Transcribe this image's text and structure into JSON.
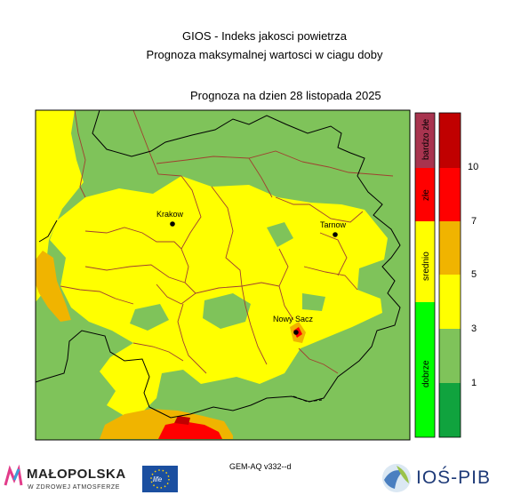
{
  "header": {
    "title_line1": "GIOS - Indeks jakosci powietrza",
    "title_line2": "Prognoza maksymalnej wartosci w ciagu doby",
    "forecast_line": "Prognoza na dzien  28 listopada 2025"
  },
  "map": {
    "cities": [
      {
        "name": "Krakow"
      },
      {
        "name": "Tarnow"
      },
      {
        "name": "Nowy Sacz"
      }
    ],
    "colors": {
      "bardzo_dobry": "#10a33e",
      "dobry": "#7fc35a",
      "umiarkowany": "#ffff00",
      "dostateczny": "#f0b400",
      "zly": "#ff0000",
      "bardzo_zly": "#c00000",
      "border_region": "#a04030",
      "border_outer": "#000000"
    }
  },
  "legend": {
    "categories": [
      {
        "label": "bardzo złe",
        "color": "#a8344f"
      },
      {
        "label": "złe",
        "color": "#ff0000"
      },
      {
        "label": "srednio",
        "color": "#ffff00"
      },
      {
        "label": "dobrze",
        "color": "#00ff00"
      }
    ],
    "scale_colors": [
      "#c00000",
      "#ff0000",
      "#f0b400",
      "#ffff00",
      "#7fc35a",
      "#10a33e"
    ],
    "scale_ticks": [
      "10",
      "7",
      "5",
      "3",
      "1"
    ]
  },
  "footer": {
    "model": "GEM-AQ v332--d",
    "malopolska_name": "MAŁOPOLSKA",
    "malopolska_tagline": "W ZDROWEJ ATMOSFERZE",
    "life_logo": "life",
    "ios_name": "IOŚ-PIB"
  }
}
